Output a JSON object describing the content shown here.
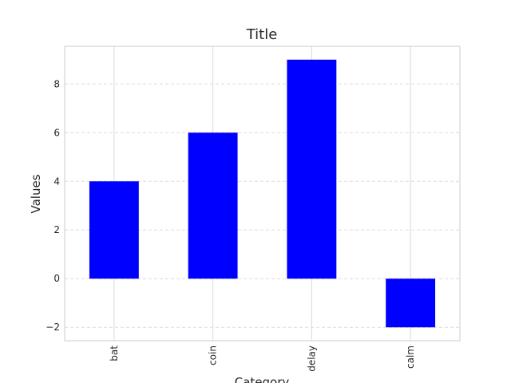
{
  "chart_data": {
    "type": "bar",
    "title": "Title",
    "xlabel": "Category",
    "ylabel": "Values",
    "categories": [
      "bat",
      "coin",
      "delay",
      "calm"
    ],
    "values": [
      4,
      6,
      9,
      -2
    ],
    "ylim": [
      -2.55,
      9.55
    ],
    "yticks": [
      -2,
      0,
      2,
      4,
      6,
      8
    ],
    "ytick_labels": [
      "−2",
      "0",
      "2",
      "4",
      "6",
      "8"
    ],
    "bar_color": "#0000ff",
    "grid": true,
    "legend": "none"
  }
}
